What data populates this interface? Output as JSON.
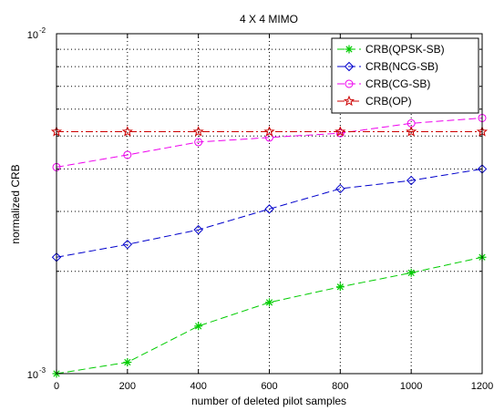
{
  "chart_data": {
    "type": "line",
    "title": "4 X 4 MIMO",
    "xlabel": "number of deleted pilot samples",
    "ylabel": "normalized CRB",
    "xlim": [
      0,
      1200
    ],
    "ylim": [
      0.001,
      0.01
    ],
    "yscale": "log",
    "grid": true,
    "legend_position": "top-right",
    "x": [
      0,
      200,
      400,
      600,
      800,
      1000,
      1200
    ],
    "x_tick_labels": [
      "0",
      "200",
      "400",
      "600",
      "800",
      "1000",
      "1200"
    ],
    "y_tick_labels": [
      {
        "base": "10",
        "exp": "-3"
      },
      {
        "base": "10",
        "exp": "-2"
      }
    ],
    "series": [
      {
        "name": "CRB(QPSK-SB)",
        "color": "#00cc00",
        "marker": "asterisk",
        "dash": "8,4",
        "values": [
          0.001,
          0.00108,
          0.00138,
          0.00162,
          0.0018,
          0.00198,
          0.0022
        ]
      },
      {
        "name": "CRB(NCG-SB)",
        "color": "#0000cc",
        "marker": "diamond",
        "dash": "8,4",
        "values": [
          0.0022,
          0.0024,
          0.00265,
          0.00305,
          0.0035,
          0.0037,
          0.004
        ]
      },
      {
        "name": "CRB(CG-SB)",
        "color": "#ee00ee",
        "marker": "circle",
        "dash": "8,4",
        "values": [
          0.00405,
          0.0044,
          0.0048,
          0.00495,
          0.0051,
          0.00545,
          0.00565
        ]
      },
      {
        "name": "CRB(OP)",
        "color": "#cc0000",
        "marker": "star",
        "dash": "8,3,2,3",
        "values": [
          0.00515,
          0.00515,
          0.00515,
          0.00515,
          0.00515,
          0.00515,
          0.00515
        ]
      }
    ]
  }
}
